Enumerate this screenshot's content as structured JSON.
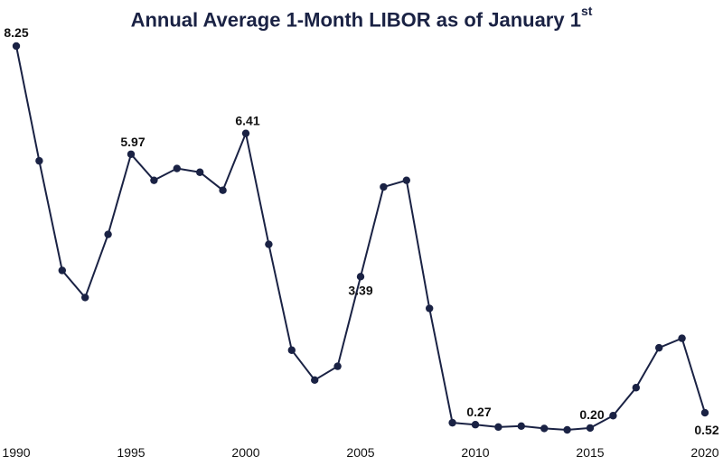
{
  "chart_data": {
    "type": "line",
    "title": "Annual Average 1-Month LIBOR as of January 1",
    "title_superscript": "st",
    "xlabel": "",
    "ylabel": "",
    "x_tick_labels": [
      "1990",
      "1995",
      "2000",
      "2005",
      "2010",
      "2015",
      "2020"
    ],
    "ylim": [
      0,
      8.5
    ],
    "grid": false,
    "line_color": "#1a2244",
    "marker_color": "#1a2244",
    "series": [
      {
        "x": [
          1990,
          1991,
          1992,
          1993,
          1994,
          1995,
          1996,
          1997,
          1998,
          1999,
          2000,
          2001,
          2002,
          2003,
          2004,
          2005,
          2006,
          2007,
          2008,
          2009,
          2010,
          2011,
          2012,
          2013,
          2014,
          2015,
          2016,
          2017,
          2018,
          2019,
          2020
        ],
        "values": [
          8.25,
          5.83,
          3.52,
          2.95,
          4.28,
          5.97,
          5.42,
          5.67,
          5.59,
          5.21,
          6.41,
          4.07,
          1.84,
          1.21,
          1.5,
          3.39,
          5.28,
          5.42,
          2.72,
          0.31,
          0.27,
          0.22,
          0.24,
          0.19,
          0.16,
          0.2,
          0.46,
          1.05,
          1.89,
          2.09,
          0.52
        ]
      }
    ],
    "data_labels": [
      {
        "x": 1990,
        "text": "8.25"
      },
      {
        "x": 1995,
        "text": "5.97"
      },
      {
        "x": 2000,
        "text": "6.41"
      },
      {
        "x": 2005,
        "text": "3.39"
      },
      {
        "x": 2010,
        "text": "0.27"
      },
      {
        "x": 2015,
        "text": "0.20"
      },
      {
        "x": 2020,
        "text": "0.52"
      }
    ]
  }
}
